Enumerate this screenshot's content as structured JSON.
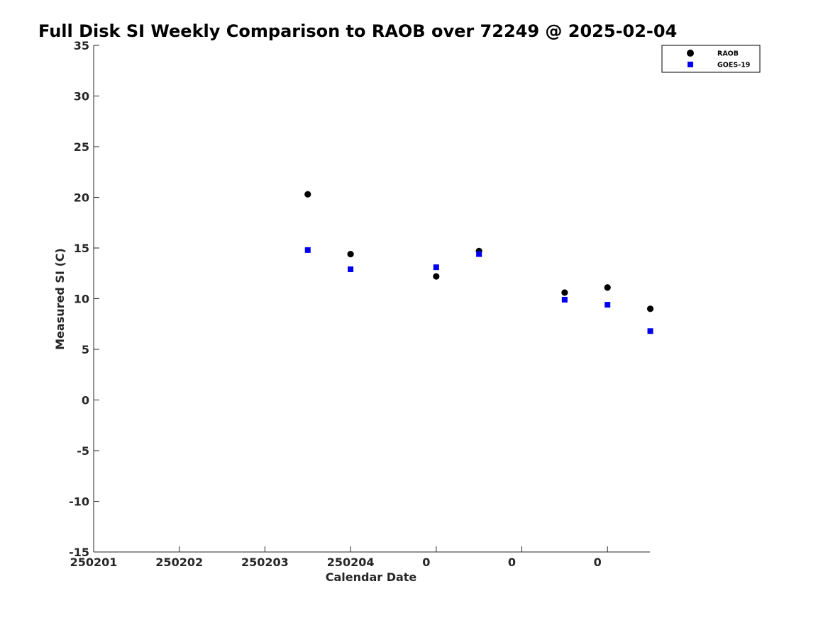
{
  "chart_data": {
    "type": "scatter",
    "title": "Full Disk SI Weekly Comparison to RAOB over 72249 @ 2025-02-04",
    "xlabel": "Calendar Date",
    "ylabel": "Measured SI (C)",
    "ylim": [
      -15,
      35
    ],
    "yticks": [
      -15,
      -10,
      -5,
      0,
      5,
      10,
      15,
      20,
      25,
      30,
      35
    ],
    "xlim": [
      0,
      6.5
    ],
    "xticks": [
      {
        "pos": 0,
        "label": "250201"
      },
      {
        "pos": 1,
        "label": "250202"
      },
      {
        "pos": 2,
        "label": "250203"
      },
      {
        "pos": 3,
        "label": "250204"
      },
      {
        "pos": 4,
        "label": "0"
      },
      {
        "pos": 5,
        "label": "0"
      },
      {
        "pos": 6,
        "label": "0"
      }
    ],
    "grid": false,
    "legend_location": "top-right",
    "series": [
      {
        "name": "RAOB",
        "marker": "circle",
        "color": "#000000",
        "points": [
          {
            "x": 2.5,
            "y": 20.3
          },
          {
            "x": 3.0,
            "y": 14.4
          },
          {
            "x": 4.0,
            "y": 12.2
          },
          {
            "x": 4.5,
            "y": 14.7
          },
          {
            "x": 5.5,
            "y": 10.6
          },
          {
            "x": 6.0,
            "y": 11.1
          },
          {
            "x": 6.5,
            "y": 9.0
          }
        ]
      },
      {
        "name": "GOES-19",
        "marker": "square",
        "color": "#0000ee",
        "points": [
          {
            "x": 2.5,
            "y": 14.8
          },
          {
            "x": 3.0,
            "y": 12.9
          },
          {
            "x": 4.0,
            "y": 13.1
          },
          {
            "x": 4.5,
            "y": 14.4
          },
          {
            "x": 5.5,
            "y": 9.9
          },
          {
            "x": 6.0,
            "y": 9.4
          },
          {
            "x": 6.5,
            "y": 6.8
          }
        ]
      }
    ]
  }
}
